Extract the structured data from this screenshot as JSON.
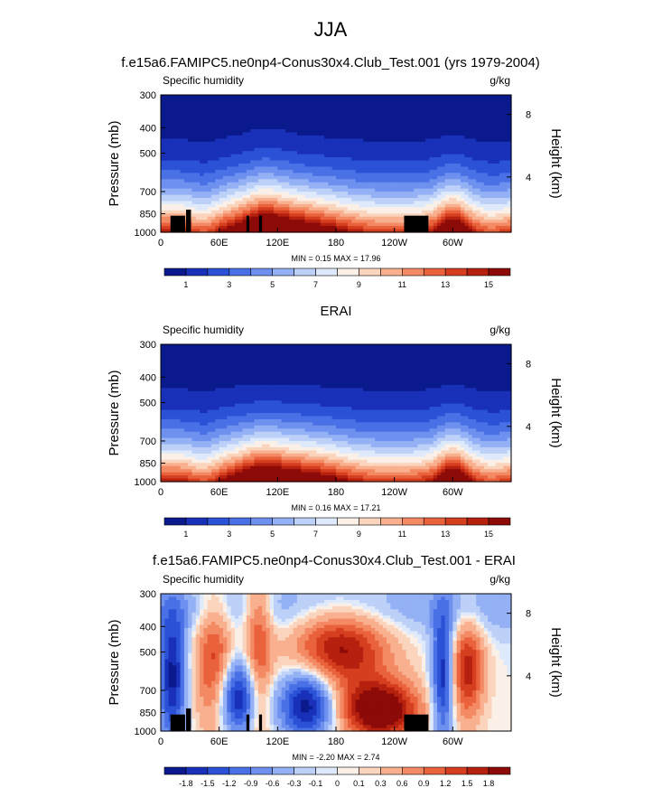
{
  "page_title": "JJA",
  "colors": {
    "abs_scale": [
      "#0a1a8c",
      "#1930b8",
      "#2b52d6",
      "#4a70e6",
      "#6e90ef",
      "#95b1f5",
      "#bcd0f8",
      "#deeafb",
      "#faf0e8",
      "#fbd4bd",
      "#f8b08f",
      "#f38a64",
      "#e9623c",
      "#d63e20",
      "#b5200f",
      "#8c0a08"
    ],
    "diff_scale": [
      "#0a1a8c",
      "#1930b8",
      "#2b52d6",
      "#4a70e6",
      "#6e90ef",
      "#95b1f5",
      "#bcd0f8",
      "#deeafb",
      "#faf0e8",
      "#fbd4bd",
      "#f8b08f",
      "#f38a64",
      "#e9623c",
      "#d63e20",
      "#b5200f",
      "#8c0a08"
    ],
    "terrain": "#000000"
  },
  "chart_data": [
    {
      "type": "heatmap",
      "title": "f.e15a6.FAMIPC5.ne0np4-Conus30x4.Club_Test.001 (yrs 1979-2004)",
      "left_label": "Specific humidity",
      "right_label": "g/kg",
      "ylabel": "Pressure (mb)",
      "y2label": "Height (km)",
      "x_ticks": [
        "0",
        "60E",
        "120E",
        "180",
        "120W",
        "60W"
      ],
      "y_ticks": [
        "300",
        "400",
        "500",
        "700",
        "850",
        "1000"
      ],
      "y2_ticks": [
        "8",
        "4"
      ],
      "stats": "MIN =  0.15  MAX = 17.96",
      "min": 0.15,
      "max": 17.96,
      "colorbar_labels": [
        "1",
        "3",
        "5",
        "7",
        "9",
        "11",
        "13",
        "15"
      ]
    },
    {
      "type": "heatmap",
      "title": "ERAI",
      "left_label": "Specific humidity",
      "right_label": "g/kg",
      "ylabel": "Pressure (mb)",
      "y2label": "Height (km)",
      "x_ticks": [
        "0",
        "60E",
        "120E",
        "180",
        "120W",
        "60W"
      ],
      "y_ticks": [
        "300",
        "400",
        "500",
        "700",
        "850",
        "1000"
      ],
      "y2_ticks": [
        "8",
        "4"
      ],
      "stats": "MIN =  0.16  MAX = 17.21",
      "min": 0.16,
      "max": 17.21,
      "colorbar_labels": [
        "1",
        "3",
        "5",
        "7",
        "9",
        "11",
        "13",
        "15"
      ]
    },
    {
      "type": "heatmap",
      "title": "f.e15a6.FAMIPC5.ne0np4-Conus30x4.Club_Test.001 - ERAI",
      "left_label": "Specific humidity",
      "right_label": "g/kg",
      "ylabel": "Pressure (mb)",
      "y2label": "Height (km)",
      "x_ticks": [
        "0",
        "60E",
        "120E",
        "180",
        "120W",
        "60W"
      ],
      "y_ticks": [
        "300",
        "400",
        "500",
        "700",
        "850",
        "1000"
      ],
      "y2_ticks": [
        "8",
        "4"
      ],
      "stats": "MIN = -2.20  MAX =  2.74",
      "min": -2.2,
      "max": 2.74,
      "colorbar_labels": [
        "-1.8",
        "-1.5",
        "-1.2",
        "-0.9",
        "-0.6",
        "-0.3",
        "-0.1",
        "0",
        "0.1",
        "0.3",
        "0.6",
        "0.9",
        "1.2",
        "1.5",
        "1.8"
      ]
    }
  ]
}
